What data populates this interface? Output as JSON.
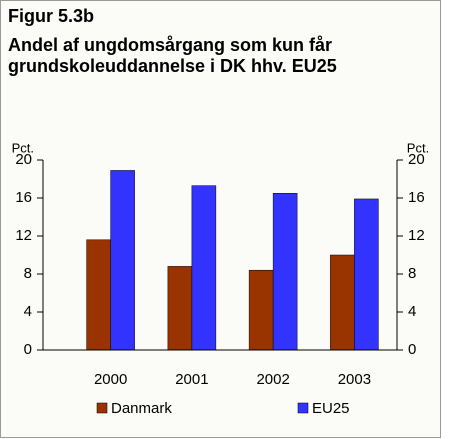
{
  "chart_data": {
    "type": "bar",
    "figure_label": "Figur 5.3b",
    "title": [
      "Andel af ungdomsårgang som kun får",
      "grundskoleuddannelse i DK hhv. EU25"
    ],
    "ylabel": "Pct.",
    "y2label": "Pct.",
    "categories": [
      "2000",
      "2001",
      "2002",
      "2003"
    ],
    "series": [
      {
        "name": "Danmark",
        "color": "#993300",
        "values": [
          11.6,
          8.8,
          8.4,
          10.0
        ]
      },
      {
        "name": "EU25",
        "color": "#3333ff",
        "values": [
          18.9,
          17.3,
          16.5,
          15.9
        ]
      }
    ],
    "ylim": [
      0,
      20
    ],
    "yticks": [
      0,
      4,
      8,
      12,
      16,
      20
    ],
    "y2lim": [
      0,
      20
    ],
    "y2ticks": [
      0,
      4,
      8,
      12,
      16,
      20
    ],
    "legend": "bottom"
  }
}
